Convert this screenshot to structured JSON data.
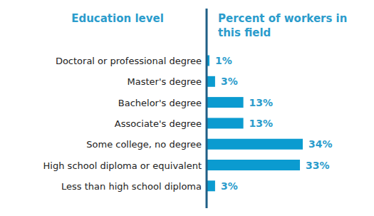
{
  "chart_data": {
    "type": "bar",
    "orientation": "horizontal",
    "y_label": "Education level",
    "x_label": "Percent of workers in this field",
    "categories": [
      "Doctoral or professional degree",
      "Master's degree",
      "Bachelor's degree",
      "Associate's degree",
      "Some college, no degree",
      "High school diploma or equivalent",
      "Less than high school diploma"
    ],
    "values": [
      1,
      3,
      13,
      13,
      34,
      33,
      3
    ],
    "value_labels": [
      "1%",
      "3%",
      "13%",
      "13%",
      "34%",
      "33%",
      "3%"
    ],
    "color": "#0b9bd0",
    "xlim": [
      0,
      34
    ],
    "data_labels": true,
    "tick_labels": "y"
  }
}
